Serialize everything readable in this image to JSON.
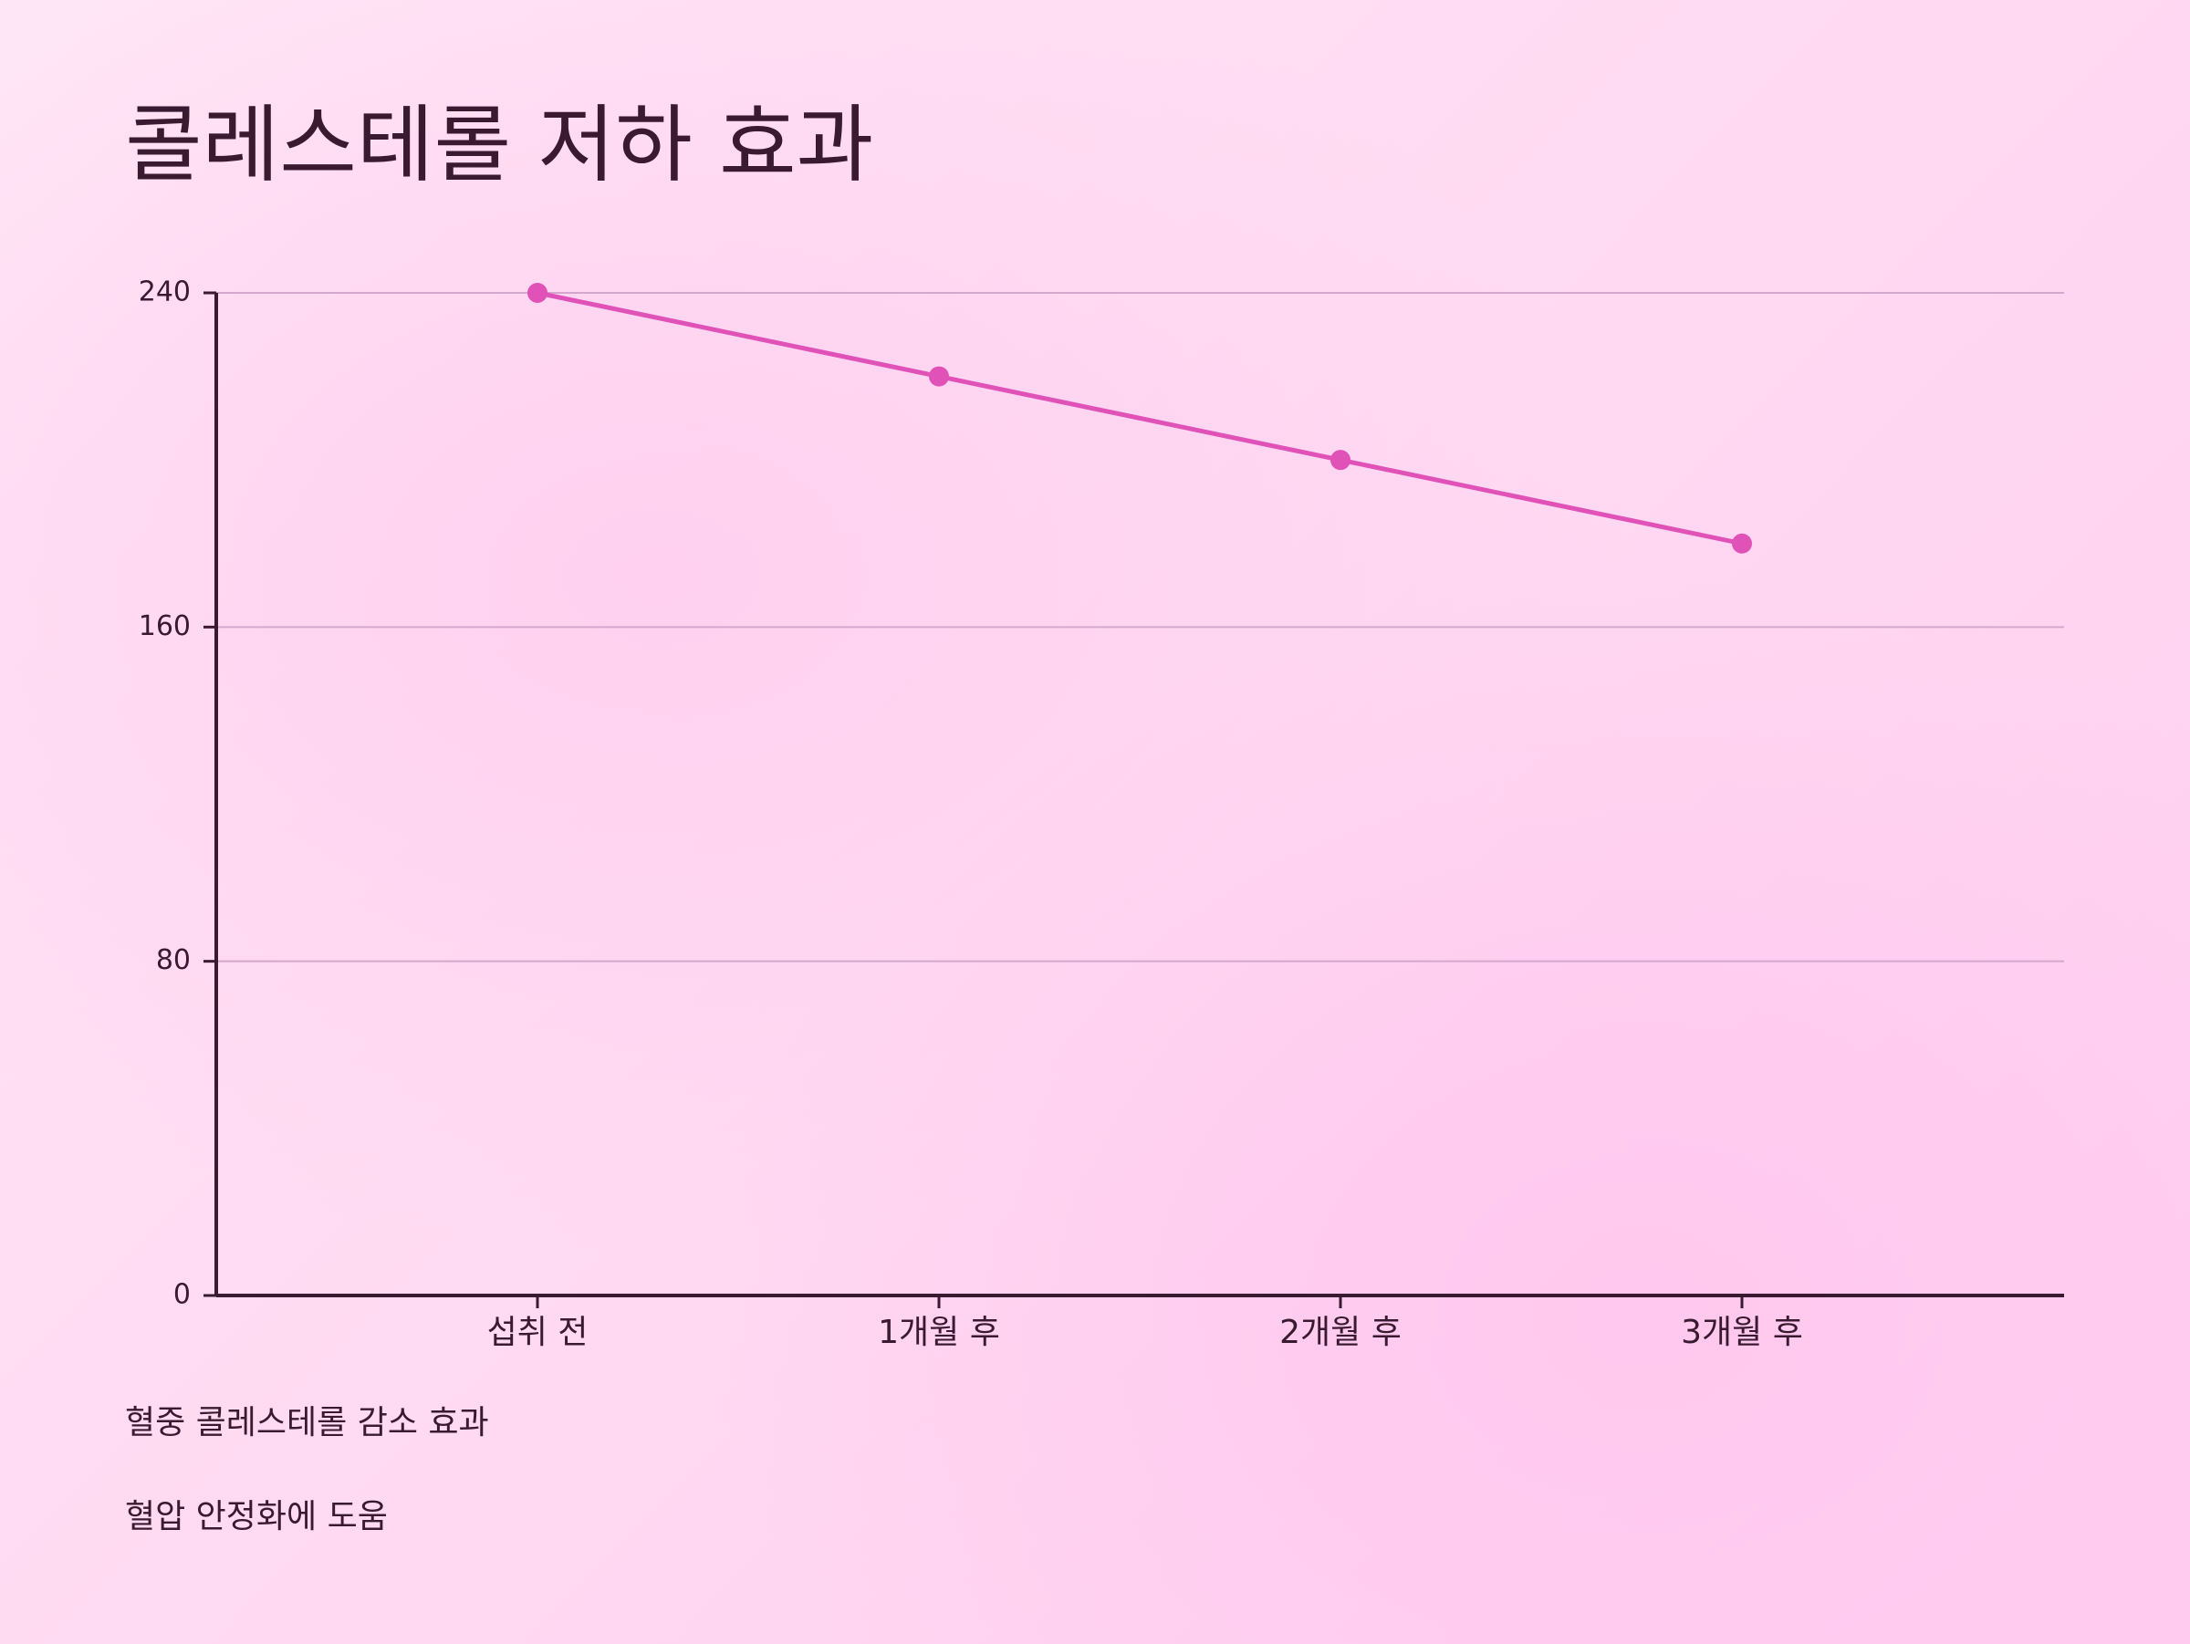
{
  "chart_data": {
    "type": "line",
    "title": "콜레스테롤 저하 효과",
    "categories": [
      "섭취 전",
      "1개월 후",
      "2개월 후",
      "3개월 후"
    ],
    "series": [
      {
        "color": "#e052b8",
        "values": [
          240,
          220,
          200,
          180
        ]
      }
    ],
    "ylim": [
      0,
      240
    ],
    "yticks": [
      0,
      80,
      160,
      240
    ],
    "grid": true
  },
  "notes": [
    "혈중 콜레스테롤 감소 효과",
    "혈압 안정화에 도움"
  ]
}
